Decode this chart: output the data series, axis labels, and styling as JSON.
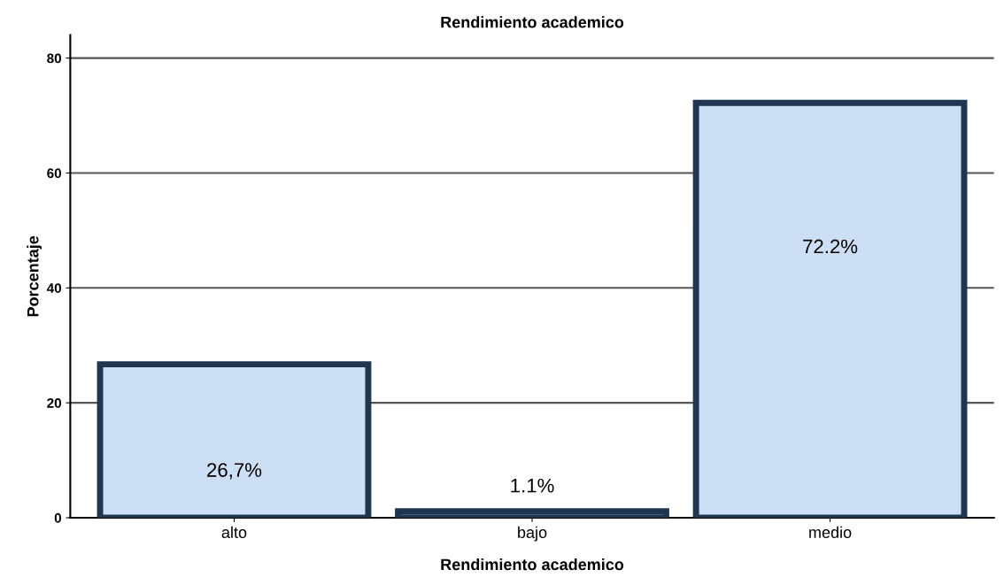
{
  "chart_data": {
    "type": "bar",
    "title": "Rendimiento academico",
    "xlabel": "Rendimiento academico",
    "ylabel": "Porcentaje",
    "categories": [
      "alto",
      "bajo",
      "medio"
    ],
    "values": [
      26.7,
      1.1,
      72.2
    ],
    "value_labels": [
      "26,7%",
      "1.1%",
      "72.2%"
    ],
    "color": "#cddff5",
    "ylim": [
      0,
      84
    ],
    "yticks": [
      0,
      20,
      40,
      60,
      80
    ],
    "grid": "y",
    "legend": false
  }
}
